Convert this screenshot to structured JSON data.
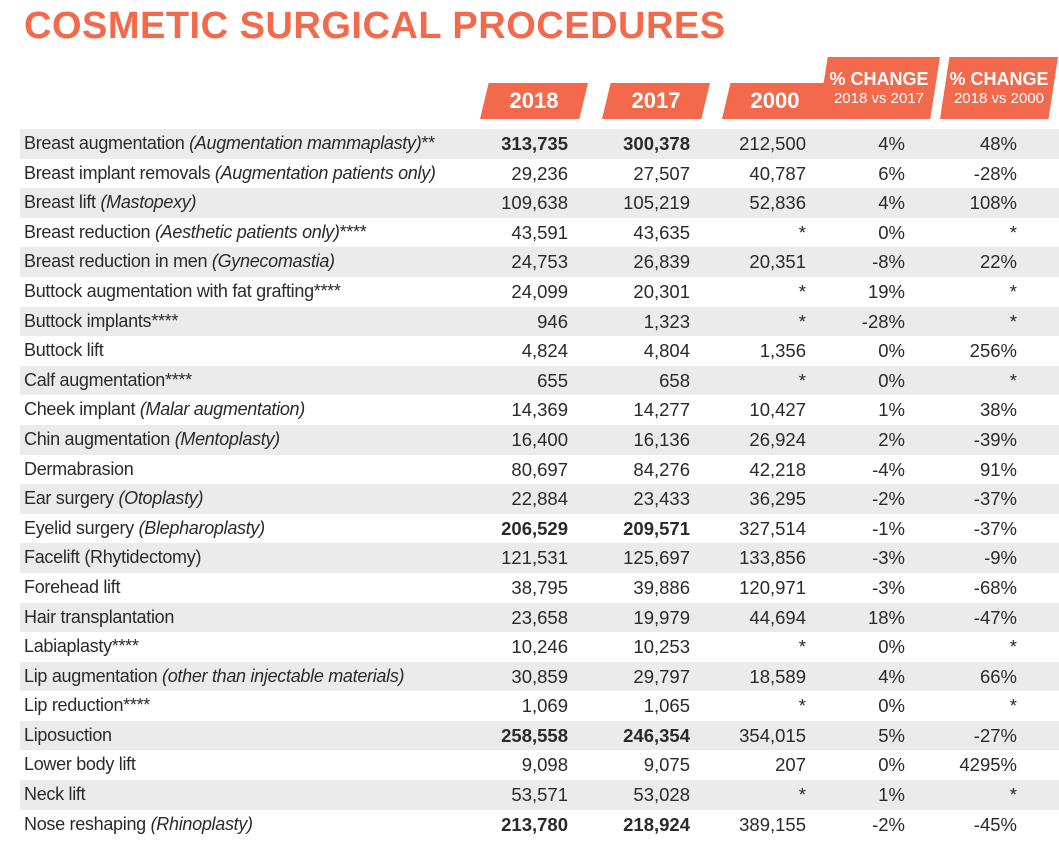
{
  "title": "COSMETIC SURGICAL PROCEDURES",
  "headers": {
    "y2018": "2018",
    "y2017": "2017",
    "y2000": "2000",
    "change1_top": "% CHANGE",
    "change1_bottom": "2018 vs 2017",
    "change2_top": "% CHANGE",
    "change2_bottom": "2018 vs 2000"
  },
  "colors": {
    "accent": "#f26a4b",
    "stripe": "#ebebeb"
  },
  "rows": [
    {
      "name": "Breast augmentation ",
      "note": "(Augmentation mammaplasty)",
      "suffix": "**",
      "v2018": "313,735",
      "v2017": "300,378",
      "v2000": "212,500",
      "c1": "4%",
      "c2": "48%",
      "bold": true
    },
    {
      "name": "Breast implant removals ",
      "note": "(Augmentation patients only)",
      "suffix": "",
      "v2018": "29,236",
      "v2017": "27,507",
      "v2000": "40,787",
      "c1": "6%",
      "c2": "-28%",
      "bold": false
    },
    {
      "name": "Breast lift ",
      "note": "(Mastopexy)",
      "suffix": "",
      "v2018": "109,638",
      "v2017": "105,219",
      "v2000": "52,836",
      "c1": "4%",
      "c2": "108%",
      "bold": false
    },
    {
      "name": "Breast reduction ",
      "note": "(Aesthetic patients only)",
      "suffix": "****",
      "v2018": "43,591",
      "v2017": "43,635",
      "v2000": "*",
      "c1": "0%",
      "c2": "*",
      "bold": false
    },
    {
      "name": "Breast reduction in men ",
      "note": "(Gynecomastia)",
      "suffix": "",
      "v2018": "24,753",
      "v2017": "26,839",
      "v2000": "20,351",
      "c1": "-8%",
      "c2": "22%",
      "bold": false
    },
    {
      "name": "Buttock augmentation with fat grafting****",
      "note": "",
      "suffix": "",
      "v2018": "24,099",
      "v2017": "20,301",
      "v2000": "*",
      "c1": "19%",
      "c2": "*",
      "bold": false
    },
    {
      "name": "Buttock implants****",
      "note": "",
      "suffix": "",
      "v2018": "946",
      "v2017": "1,323",
      "v2000": "*",
      "c1": "-28%",
      "c2": "*",
      "bold": false
    },
    {
      "name": "Buttock lift",
      "note": "",
      "suffix": "",
      "v2018": "4,824",
      "v2017": "4,804",
      "v2000": "1,356",
      "c1": "0%",
      "c2": "256%",
      "bold": false
    },
    {
      "name": "Calf augmentation****",
      "note": "",
      "suffix": "",
      "v2018": "655",
      "v2017": "658",
      "v2000": "*",
      "c1": "0%",
      "c2": "*",
      "bold": false
    },
    {
      "name": "Cheek implant ",
      "note": "(Malar augmentation)",
      "suffix": "",
      "v2018": "14,369",
      "v2017": "14,277",
      "v2000": "10,427",
      "c1": "1%",
      "c2": "38%",
      "bold": false
    },
    {
      "name": "Chin augmentation ",
      "note": "(Mentoplasty)",
      "suffix": "",
      "v2018": "16,400",
      "v2017": "16,136",
      "v2000": "26,924",
      "c1": "2%",
      "c2": "-39%",
      "bold": false
    },
    {
      "name": "Dermabrasion",
      "note": "",
      "suffix": "",
      "v2018": "80,697",
      "v2017": "84,276",
      "v2000": "42,218",
      "c1": "-4%",
      "c2": "91%",
      "bold": false
    },
    {
      "name": "Ear surgery ",
      "note": "(Otoplasty)",
      "suffix": "",
      "v2018": "22,884",
      "v2017": "23,433",
      "v2000": "36,295",
      "c1": "-2%",
      "c2": "-37%",
      "bold": false
    },
    {
      "name": "Eyelid surgery ",
      "note": "(Blepharoplasty)",
      "suffix": "",
      "v2018": "206,529",
      "v2017": "209,571",
      "v2000": "327,514",
      "c1": "-1%",
      "c2": "-37%",
      "bold": true
    },
    {
      "name": "Facelift (Rhytidectomy)",
      "note": "",
      "suffix": "",
      "v2018": "121,531",
      "v2017": "125,697",
      "v2000": "133,856",
      "c1": "-3%",
      "c2": "-9%",
      "bold": false
    },
    {
      "name": "Forehead lift",
      "note": "",
      "suffix": "",
      "v2018": "38,795",
      "v2017": "39,886",
      "v2000": "120,971",
      "c1": "-3%",
      "c2": "-68%",
      "bold": false
    },
    {
      "name": "Hair transplantation",
      "note": "",
      "suffix": "",
      "v2018": "23,658",
      "v2017": "19,979",
      "v2000": "44,694",
      "c1": "18%",
      "c2": "-47%",
      "bold": false
    },
    {
      "name": "Labiaplasty****",
      "note": "",
      "suffix": "",
      "v2018": "10,246",
      "v2017": "10,253",
      "v2000": "*",
      "c1": "0%",
      "c2": "*",
      "bold": false
    },
    {
      "name": "Lip augmentation ",
      "note": "(other than injectable materials)",
      "suffix": "",
      "v2018": "30,859",
      "v2017": "29,797",
      "v2000": "18,589",
      "c1": "4%",
      "c2": "66%",
      "bold": false
    },
    {
      "name": "Lip reduction****",
      "note": "",
      "suffix": "",
      "v2018": "1,069",
      "v2017": "1,065",
      "v2000": "*",
      "c1": "0%",
      "c2": "*",
      "bold": false
    },
    {
      "name": "Liposuction",
      "note": "",
      "suffix": "",
      "v2018": "258,558",
      "v2017": "246,354",
      "v2000": "354,015",
      "c1": "5%",
      "c2": "-27%",
      "bold": true
    },
    {
      "name": "Lower body lift",
      "note": "",
      "suffix": "",
      "v2018": "9,098",
      "v2017": "9,075",
      "v2000": "207",
      "c1": "0%",
      "c2": "4295%",
      "bold": false
    },
    {
      "name": "Neck lift",
      "note": "",
      "suffix": "",
      "v2018": "53,571",
      "v2017": "53,028",
      "v2000": "*",
      "c1": "1%",
      "c2": "*",
      "bold": false
    },
    {
      "name": "Nose reshaping ",
      "note": "(Rhinoplasty)",
      "suffix": "",
      "v2018": "213,780",
      "v2017": "218,924",
      "v2000": "389,155",
      "c1": "-2%",
      "c2": "-45%",
      "bold": true
    }
  ]
}
